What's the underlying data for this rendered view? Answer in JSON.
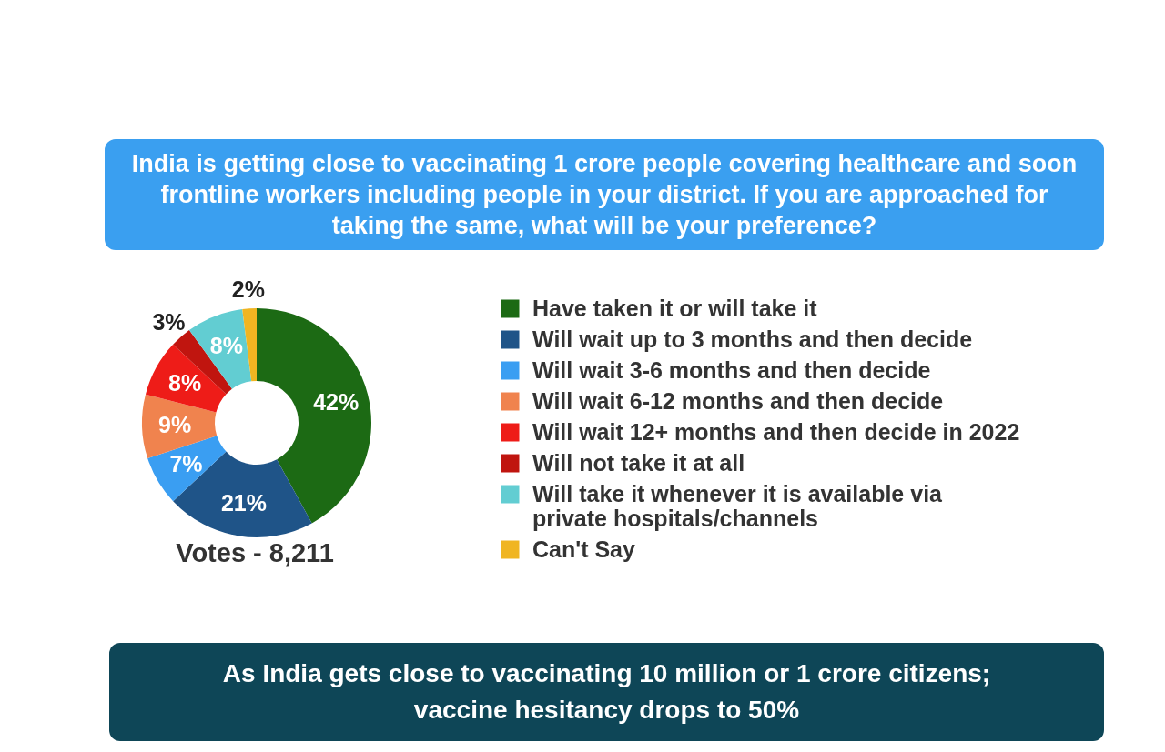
{
  "chart_data": {
    "type": "donut",
    "title": "India is getting close to vaccinating 1 crore people covering healthcare and soon frontline workers including people in your district. If you are approached for taking the same, what will be your preference?",
    "categories": [
      "Have taken it or will take it",
      "Will wait up to 3 months and then decide",
      "Will wait 3-6 months and then decide",
      "Will wait 6-12 months and then decide",
      "Will wait 12+ months and then decide in 2022",
      "Will not take it at all",
      "Will take it whenever it is available via private hospitals/channels",
      "Can't Say"
    ],
    "values": [
      42,
      21,
      7,
      9,
      8,
      3,
      8,
      2
    ],
    "colors": [
      "#1c6a14",
      "#1f5488",
      "#3a9ef2",
      "#f0834e",
      "#ee1c18",
      "#c0150f",
      "#62cdd2",
      "#f0b522"
    ],
    "value_labels": [
      "42%",
      "21%",
      "7%",
      "9%",
      "8%",
      "3%",
      "8%",
      "2%"
    ],
    "legend": "right",
    "annotations": [
      "Votes - 8,211",
      "As India gets close to vaccinating 10 million or 1 crore citizens; vaccine hesitancy drops to 50%"
    ]
  }
}
